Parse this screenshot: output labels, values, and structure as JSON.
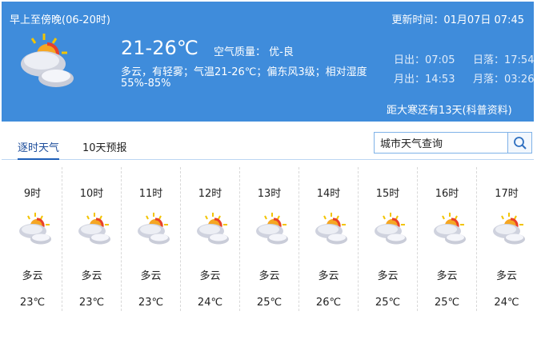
{
  "header": {
    "period": "早上至傍晚(06-20时)",
    "update_time": "更新时间：01月07日 07:45",
    "temp_range": "21-26℃",
    "air_quality": "空气质量： 优-良",
    "description": "多云，有轻雾；气温21-26℃；偏东风3级；相对湿度",
    "humidity": "55%-85%",
    "sunrise": "日出：07:05",
    "sunset": "日落：17:54",
    "moonrise": "月出：14:53",
    "moonset": "月落：03:26",
    "solar_term": "距大寒还有13天(科普资料)",
    "icon": "partly-cloudy-icon"
  },
  "tabs": [
    {
      "label": "逐时天气",
      "active": true
    },
    {
      "label": "10天预报",
      "active": false
    }
  ],
  "search": {
    "value": "城市天气查询"
  },
  "hourly": [
    {
      "hour": "9时",
      "weather": "多云",
      "temp": "23℃"
    },
    {
      "hour": "10时",
      "weather": "多云",
      "temp": "23℃"
    },
    {
      "hour": "11时",
      "weather": "多云",
      "temp": "23℃"
    },
    {
      "hour": "12时",
      "weather": "多云",
      "temp": "24℃"
    },
    {
      "hour": "13时",
      "weather": "多云",
      "temp": "25℃"
    },
    {
      "hour": "14时",
      "weather": "多云",
      "temp": "26℃"
    },
    {
      "hour": "15时",
      "weather": "多云",
      "temp": "25℃"
    },
    {
      "hour": "16时",
      "weather": "多云",
      "temp": "25℃"
    },
    {
      "hour": "17时",
      "weather": "多云",
      "temp": "24℃"
    }
  ],
  "colors": {
    "header_bg": "#3f8cdb",
    "active_tab": "#1d4d9b"
  }
}
